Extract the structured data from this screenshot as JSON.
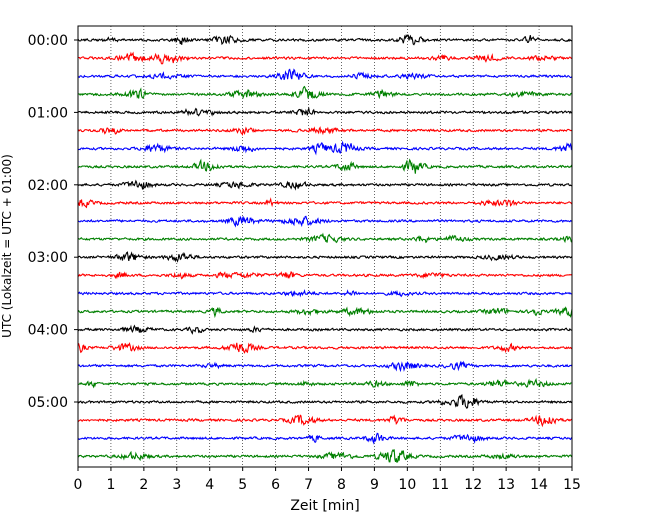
{
  "chart_data": {
    "type": "line",
    "title": "",
    "xlabel": "Zeit  [min]",
    "ylabel": "UTC (Lokalzeit = UTC + 01:00)",
    "xlim": [
      0,
      15
    ],
    "x_ticks": [
      "0",
      "1",
      "2",
      "3",
      "4",
      "5",
      "6",
      "7",
      "8",
      "9",
      "10",
      "11",
      "12",
      "13",
      "14",
      "15"
    ],
    "y_ticks": [
      "00:00",
      "01:00",
      "02:00",
      "03:00",
      "04:00",
      "05:00"
    ],
    "grid": {
      "x": true,
      "y": false,
      "style": "dotted"
    },
    "trace_colors": [
      "#000000",
      "#ff0000",
      "#0000ff",
      "#008000"
    ],
    "traces_per_hour": 4,
    "trace_count": 24,
    "trace_start_times": [
      "00:00",
      "00:15",
      "00:30",
      "00:45",
      "01:00",
      "01:15",
      "01:30",
      "01:45",
      "02:00",
      "02:15",
      "02:30",
      "02:45",
      "03:00",
      "03:15",
      "03:30",
      "03:45",
      "04:00",
      "04:15",
      "04:30",
      "04:45",
      "05:00",
      "05:15",
      "05:30",
      "05:45"
    ]
  }
}
